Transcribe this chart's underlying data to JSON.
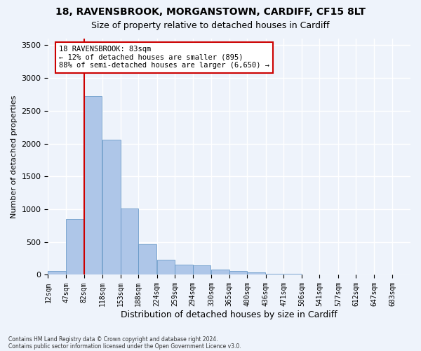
{
  "title_line1": "18, RAVENSBROOK, MORGANSTOWN, CARDIFF, CF15 8LT",
  "title_line2": "Size of property relative to detached houses in Cardiff",
  "xlabel": "Distribution of detached houses by size in Cardiff",
  "ylabel": "Number of detached properties",
  "footer_line1": "Contains HM Land Registry data © Crown copyright and database right 2024.",
  "footer_line2": "Contains public sector information licensed under the Open Government Licence v3.0.",
  "annotation_line1": "18 RAVENSBROOK: 83sqm",
  "annotation_line2": "← 12% of detached houses are smaller (895)",
  "annotation_line3": "88% of semi-detached houses are larger (6,650) →",
  "bin_edges": [
    12,
    47,
    82,
    118,
    153,
    188,
    224,
    259,
    294,
    330,
    365,
    400,
    436,
    471,
    506,
    541,
    577,
    612,
    647,
    683,
    718
  ],
  "bar_heights": [
    60,
    850,
    2720,
    2060,
    1010,
    460,
    230,
    150,
    140,
    75,
    55,
    40,
    15,
    20,
    10,
    5,
    5,
    3,
    2,
    2
  ],
  "bar_color": "#aec6e8",
  "bar_edge_color": "#5a8fc2",
  "red_line_x": 83,
  "ylim": [
    0,
    3600
  ],
  "yticks": [
    0,
    500,
    1000,
    1500,
    2000,
    2500,
    3000,
    3500
  ],
  "background_color": "#eef3fb",
  "grid_color": "#ffffff",
  "annotation_box_color": "#ffffff",
  "annotation_box_edgecolor": "#cc0000",
  "red_line_color": "#cc0000",
  "figwidth": 6.0,
  "figheight": 5.0,
  "dpi": 100
}
